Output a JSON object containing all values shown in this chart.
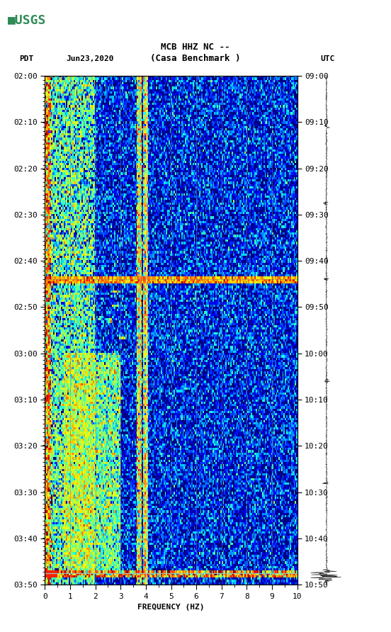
{
  "title_line1": "MCB HHZ NC --",
  "title_line2": "(Casa Benchmark )",
  "left_label": "PDT",
  "date_label": "Jun23,2020",
  "right_label": "UTC",
  "left_times": [
    "02:00",
    "02:10",
    "02:20",
    "02:30",
    "02:40",
    "02:50",
    "03:00",
    "03:10",
    "03:20",
    "03:30",
    "03:40",
    "03:50"
  ],
  "right_times": [
    "09:00",
    "09:10",
    "09:20",
    "09:30",
    "09:40",
    "09:50",
    "10:00",
    "10:10",
    "10:20",
    "10:30",
    "10:40",
    "10:50"
  ],
  "freq_min": 0,
  "freq_max": 10,
  "freq_ticks": [
    0,
    1,
    2,
    3,
    4,
    5,
    6,
    7,
    8,
    9,
    10
  ],
  "freq_label": "FREQUENCY (HZ)",
  "background_color": "#ffffff",
  "spectrogram_bgcolor": "#00008B",
  "logo_color": "#2E8B57",
  "font_size_title": 9,
  "font_size_labels": 8,
  "font_size_ticks": 8,
  "colormap": "jet"
}
